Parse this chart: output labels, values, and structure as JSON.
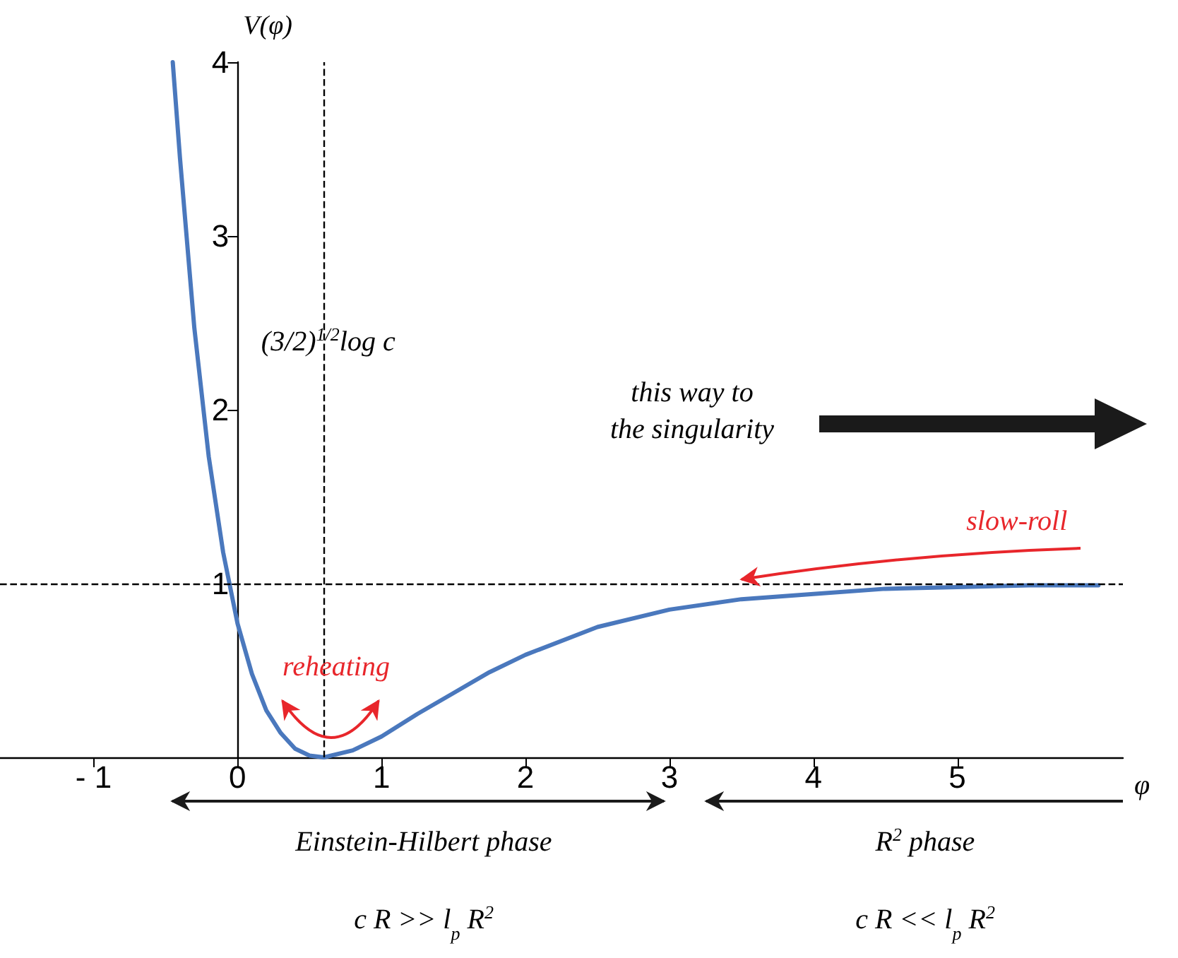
{
  "chart_data": {
    "type": "line",
    "xlabel": "φ",
    "ylabel": "V(φ)",
    "x": [
      -0.45,
      -0.4,
      -0.3,
      -0.2,
      -0.1,
      0,
      0.1,
      0.2,
      0.3,
      0.4,
      0.5,
      0.6,
      0.8,
      1.0,
      1.25,
      1.5,
      1.75,
      2,
      2.5,
      3,
      3.5,
      4,
      4.5,
      5,
      5.5,
      5.98
    ],
    "series": [
      {
        "color": "#4a78bd",
        "values": [
          4.0,
          3.45,
          2.47,
          1.73,
          1.18,
          0.77,
          0.48,
          0.27,
          0.14,
          0.05,
          0.01,
          0,
          0.04,
          0.12,
          0.25,
          0.37,
          0.49,
          0.59,
          0.75,
          0.85,
          0.91,
          0.94,
          0.97,
          0.98,
          0.99,
          0.99
        ]
      }
    ],
    "xlim": [
      -1.65,
      6.15
    ],
    "ylim": [
      0,
      4
    ],
    "xticks": [
      {
        "value": -1,
        "label": "- 1"
      },
      0,
      1,
      2,
      3,
      4,
      5
    ],
    "yticks": [
      1,
      2,
      3,
      4
    ],
    "marker": "none",
    "line_style": "solid",
    "grid": false,
    "ref_lines": [
      {
        "axis": "y",
        "value": 1,
        "line_style": "dashed",
        "color": "#000000"
      },
      {
        "axis": "x",
        "value": 0.6,
        "line_style": "dashed",
        "color": "#000000"
      }
    ],
    "annotations": [
      "this way to the singularity",
      "Einstein-Hilbert phase",
      "R$^{2}$ phase",
      "c R >> l$_{p}$ R$^{2}$",
      "c R << l$_{p}$ R$^{2}$",
      "reheating",
      {
        "text": "(3/2)$^{1/2}$log c",
        "x": 0.63,
        "y": 2.4
      },
      {
        "text": "slow-roll",
        "x": 3.5,
        "y": 1
      }
    ]
  }
}
